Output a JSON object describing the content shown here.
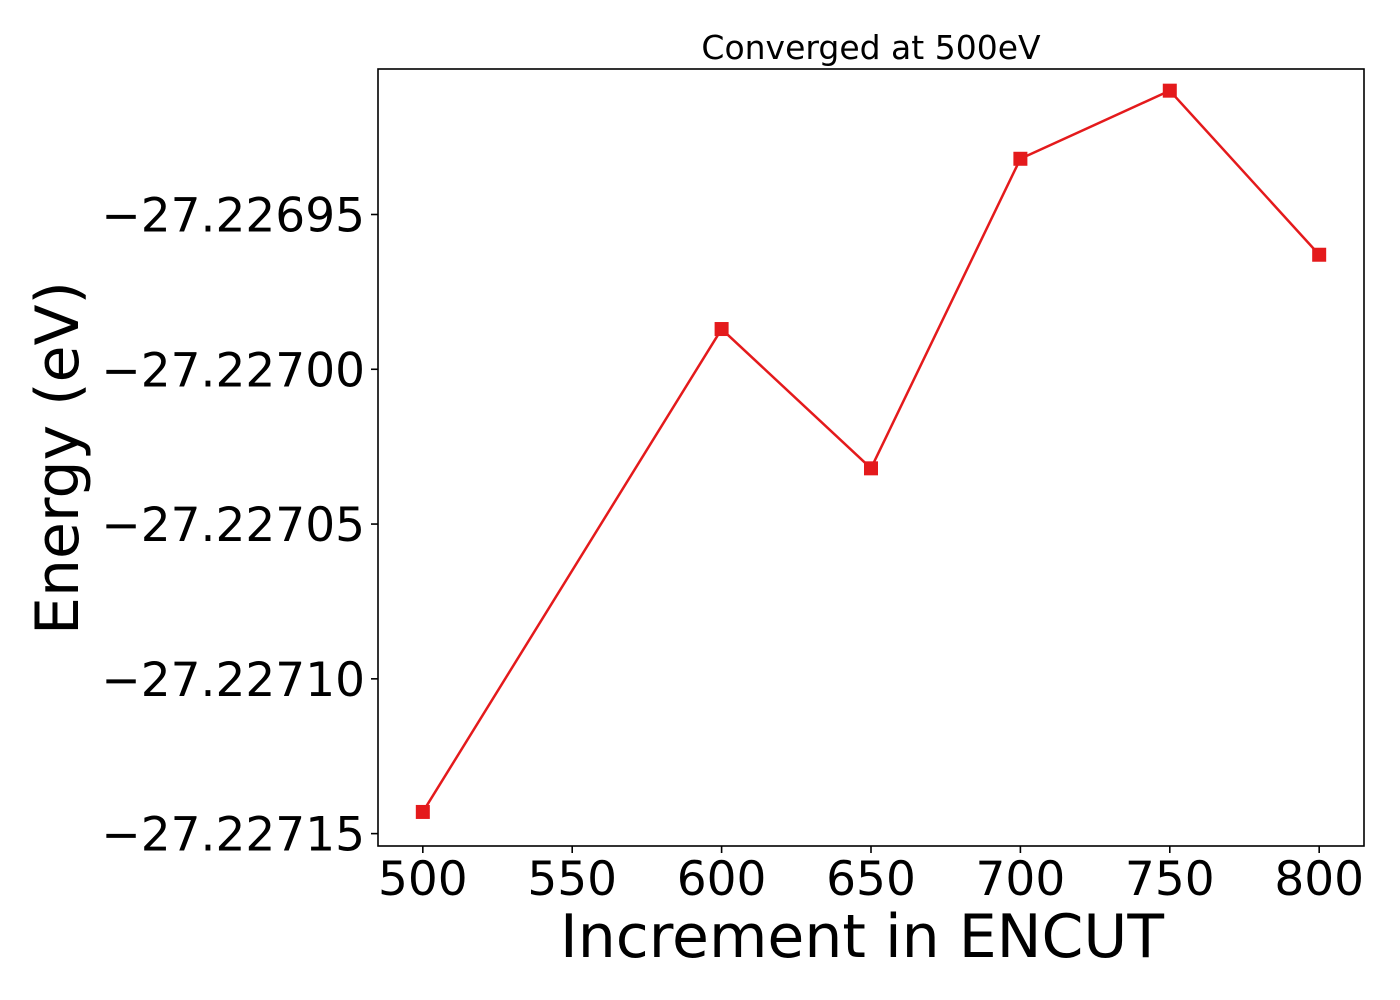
{
  "chart_data": {
    "type": "line",
    "title": "Converged at 500eV",
    "xlabel": "Increment in ENCUT",
    "ylabel": "Energy (eV)",
    "x": [
      500,
      600,
      650,
      700,
      750,
      800
    ],
    "series": [
      {
        "values": [
          -27.227143,
          -27.226987,
          -27.227032,
          -27.226932,
          -27.22691,
          -27.226963
        ],
        "color": "#e41a1c",
        "marker": "square"
      }
    ],
    "xlim": [
      485,
      815
    ],
    "ylim": [
      -27.227154,
      -27.226903
    ],
    "xticks": [
      500,
      550,
      600,
      650,
      700,
      750,
      800
    ],
    "xtick_labels": [
      "500",
      "550",
      "600",
      "650",
      "700",
      "750",
      "800"
    ],
    "yticks": [
      -27.22715,
      -27.2271,
      -27.22705,
      -27.227,
      -27.22695
    ],
    "ytick_labels": [
      "−27.22715",
      "−27.22710",
      "−27.22705",
      "−27.22700",
      "−27.22695"
    ],
    "grid": false,
    "legend": "none"
  }
}
